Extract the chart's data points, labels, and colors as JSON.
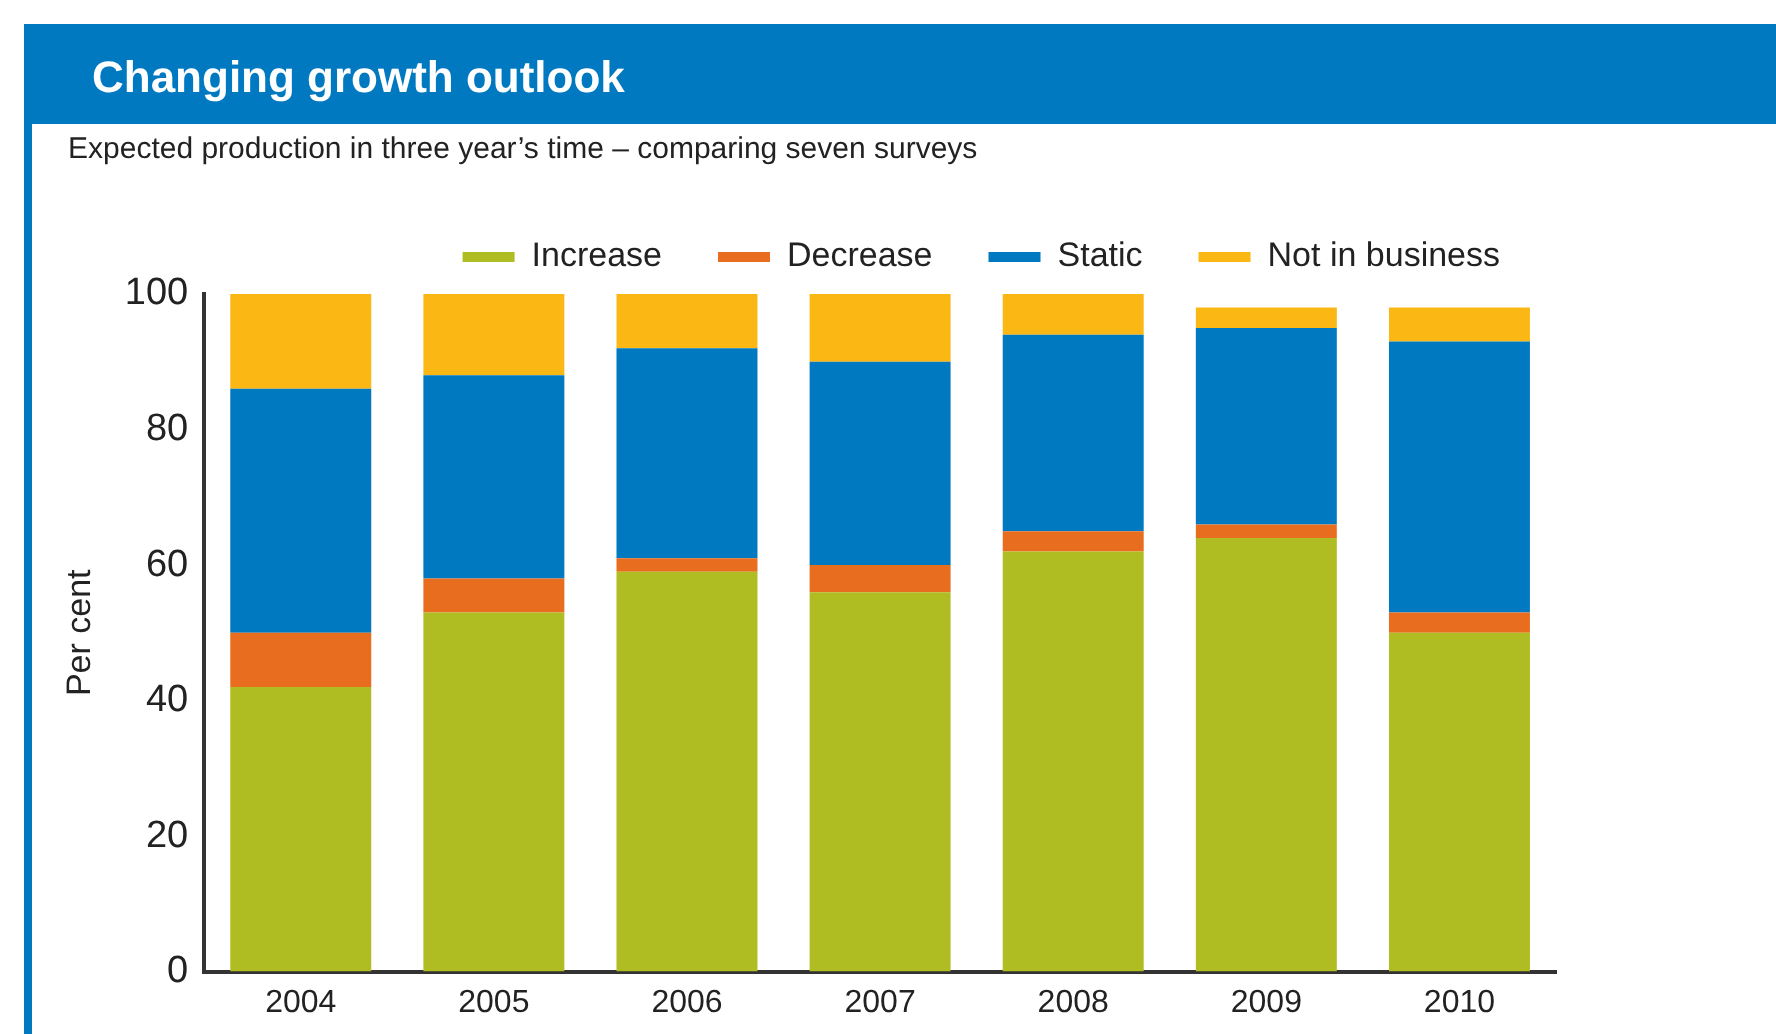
{
  "chart_data": {
    "type": "bar",
    "title": "Changing growth outlook",
    "subtitle": "Expected production in three year’s time – comparing seven surveys",
    "ylabel": "Per cent",
    "categories": [
      "2004",
      "2005",
      "2006",
      "2007",
      "2008",
      "2009",
      "2010"
    ],
    "stacked": true,
    "ylim": [
      0,
      100
    ],
    "yticks": [
      0,
      20,
      40,
      60,
      80,
      100
    ],
    "grid": false,
    "legend": "top right",
    "series": [
      {
        "name": "Increase",
        "color": "#afbd22",
        "values": [
          42,
          53,
          59,
          56,
          62,
          64,
          50
        ]
      },
      {
        "name": "Decrease",
        "color": "#e86d1f",
        "values": [
          8,
          5,
          2,
          4,
          3,
          2,
          3
        ]
      },
      {
        "name": "Static",
        "color": "#0079c1",
        "values": [
          36,
          30,
          31,
          30,
          29,
          29,
          40
        ]
      },
      {
        "name": "Not in business",
        "color": "#fbb714",
        "values": [
          14,
          12,
          8,
          10,
          6,
          3,
          5
        ]
      }
    ]
  }
}
